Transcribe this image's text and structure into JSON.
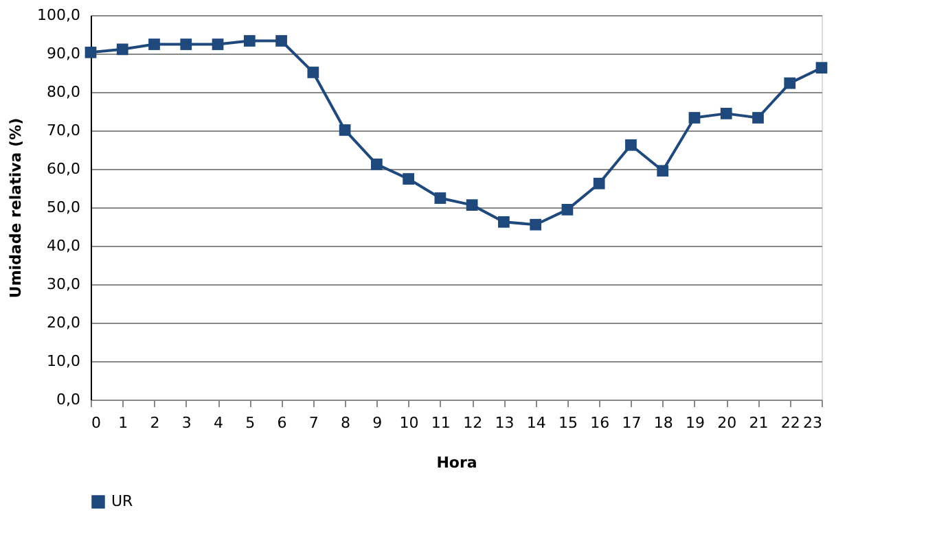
{
  "chart_data": {
    "type": "line",
    "xlabel": "Hora",
    "ylabel": "Umidade relativa (%)",
    "x": [
      0,
      1,
      2,
      3,
      4,
      5,
      6,
      7,
      8,
      9,
      10,
      11,
      12,
      13,
      14,
      15,
      16,
      17,
      18,
      19,
      20,
      21,
      22,
      23
    ],
    "series": [
      {
        "name": "UR",
        "color": "#1f497d",
        "values": [
          90.3,
          91.1,
          92.4,
          92.4,
          92.4,
          93.3,
          93.3,
          85.1,
          70.1,
          61.2,
          57.4,
          52.4,
          50.6,
          46.2,
          45.5,
          49.4,
          56.2,
          66.2,
          59.5,
          73.3,
          74.4,
          73.3,
          82.3,
          86.3
        ]
      }
    ],
    "xlim": [
      0,
      23
    ],
    "xticks": [
      0,
      1,
      2,
      3,
      4,
      5,
      6,
      7,
      8,
      9,
      10,
      11,
      12,
      13,
      14,
      15,
      16,
      17,
      18,
      19,
      20,
      21,
      22,
      23
    ],
    "ylim": [
      0,
      100
    ],
    "yticks": [
      {
        "value": 0,
        "label": "0,0"
      },
      {
        "value": 10,
        "label": "10,0"
      },
      {
        "value": 20,
        "label": "20,0"
      },
      {
        "value": 30,
        "label": "30,0"
      },
      {
        "value": 40,
        "label": "40,0"
      },
      {
        "value": 50,
        "label": "50,0"
      },
      {
        "value": 60,
        "label": "60,0"
      },
      {
        "value": 70,
        "label": "70,0"
      },
      {
        "value": 80,
        "label": "80,0"
      },
      {
        "value": 90,
        "label": "90,0"
      },
      {
        "value": 100,
        "label": "100,0"
      }
    ],
    "grid": "y",
    "legend": "bottom",
    "marker": "square",
    "line_style": "solid"
  }
}
